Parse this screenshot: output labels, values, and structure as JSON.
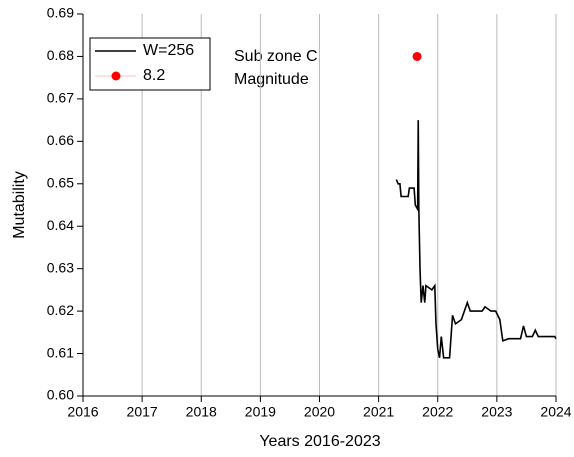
{
  "chart_data": {
    "type": "line",
    "xlabel": "Years 2016-2023",
    "ylabel": "Mutability",
    "annotations": [
      "Sub zone C",
      "Magnitude"
    ],
    "xlim": [
      2016,
      2024
    ],
    "xticks": [
      2016,
      2017,
      2018,
      2019,
      2020,
      2021,
      2022,
      2023,
      2024
    ],
    "ylim": [
      0.6,
      0.69
    ],
    "yticks": [
      {
        "value": 0.6,
        "label": "0.60"
      },
      0.61,
      0.62,
      0.63,
      0.64,
      0.65,
      0.66,
      0.67,
      0.68,
      0.69
    ],
    "grid": true,
    "legend": "upper left",
    "series": [
      {
        "name": "W=256",
        "type": "line",
        "color": "#000000",
        "x": [
          2021.3,
          2021.33,
          2021.36,
          2021.38,
          2021.5,
          2021.52,
          2021.6,
          2021.62,
          2021.66,
          2021.67,
          2021.68,
          2021.7,
          2021.72,
          2021.75,
          2021.78,
          2021.8,
          2021.9,
          2021.95,
          2021.97,
          2022.0,
          2022.03,
          2022.06,
          2022.1,
          2022.2,
          2022.25,
          2022.3,
          2022.4,
          2022.45,
          2022.5,
          2022.55,
          2022.75,
          2022.8,
          2022.9,
          2022.98,
          2023.05,
          2023.1,
          2023.2,
          2023.4,
          2023.45,
          2023.5,
          2023.6,
          2023.65,
          2023.7,
          2023.98,
          2024.0
        ],
        "values": [
          0.651,
          0.65,
          0.65,
          0.647,
          0.647,
          0.649,
          0.649,
          0.645,
          0.644,
          0.665,
          0.644,
          0.63,
          0.622,
          0.626,
          0.622,
          0.626,
          0.625,
          0.626,
          0.617,
          0.611,
          0.609,
          0.614,
          0.609,
          0.609,
          0.619,
          0.617,
          0.618,
          0.62,
          0.622,
          0.62,
          0.62,
          0.621,
          0.62,
          0.62,
          0.618,
          0.613,
          0.6135,
          0.6135,
          0.6165,
          0.614,
          0.614,
          0.6155,
          0.614,
          0.614,
          0.6135
        ]
      },
      {
        "name": "8.2",
        "type": "scatter",
        "color": "#ff0000",
        "x": [
          2021.65
        ],
        "values": [
          0.68
        ]
      }
    ]
  }
}
